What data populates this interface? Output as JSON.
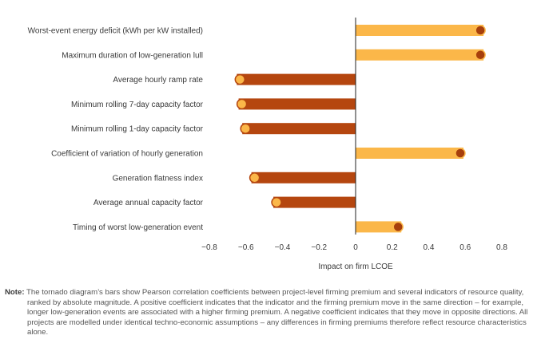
{
  "chart_data": {
    "type": "bar",
    "orientation": "horizontal",
    "categories": [
      "Worst-event energy deficit (kWh per kW installed)",
      "Maximum duration of low-generation lull",
      "Average hourly ramp rate",
      "Minimum rolling 7-day capacity factor",
      "Minimum rolling 1-day capacity factor",
      "Coefficient of variation of hourly generation",
      "Generation flatness index",
      "Average annual capacity factor",
      "Timing of worst low-generation event"
    ],
    "values": [
      0.7,
      0.7,
      -0.65,
      -0.64,
      -0.62,
      0.59,
      -0.57,
      -0.45,
      0.25
    ],
    "xlabel": "Impact on firm LCOE",
    "ylabel": "",
    "xlim": [
      -0.8,
      0.8
    ],
    "xticks": [
      -0.8,
      -0.6,
      -0.4,
      -0.2,
      0,
      0.2,
      0.4,
      0.6,
      0.8
    ],
    "xtick_labels": [
      "−0.8",
      "−0.6",
      "−0.4",
      "−0.2",
      "0",
      "0.2",
      "0.4",
      "0.6",
      "0.8"
    ],
    "grid": false,
    "colors": {
      "positive_bar": "#fbb749",
      "negative_bar": "#b5460f",
      "positive_marker": "#a73f0c",
      "negative_marker": "#fbb749",
      "axis": "#222222"
    }
  },
  "note": {
    "label": "Note:",
    "text": "The tornado diagram’s bars show Pearson correlation coefficients between project-level firming premium and several indicators of resource quality, ranked by absolute magnitude. A positive coefficient indicates that the indicator and the firming premium move in the same direction – for example, longer low-generation events are associated with a higher firming premium. A negative coefficient indicates that they move in opposite directions. All projects are modelled under identical techno-economic assumptions – any differences in firming premiums therefore reflect resource characteristics alone."
  }
}
